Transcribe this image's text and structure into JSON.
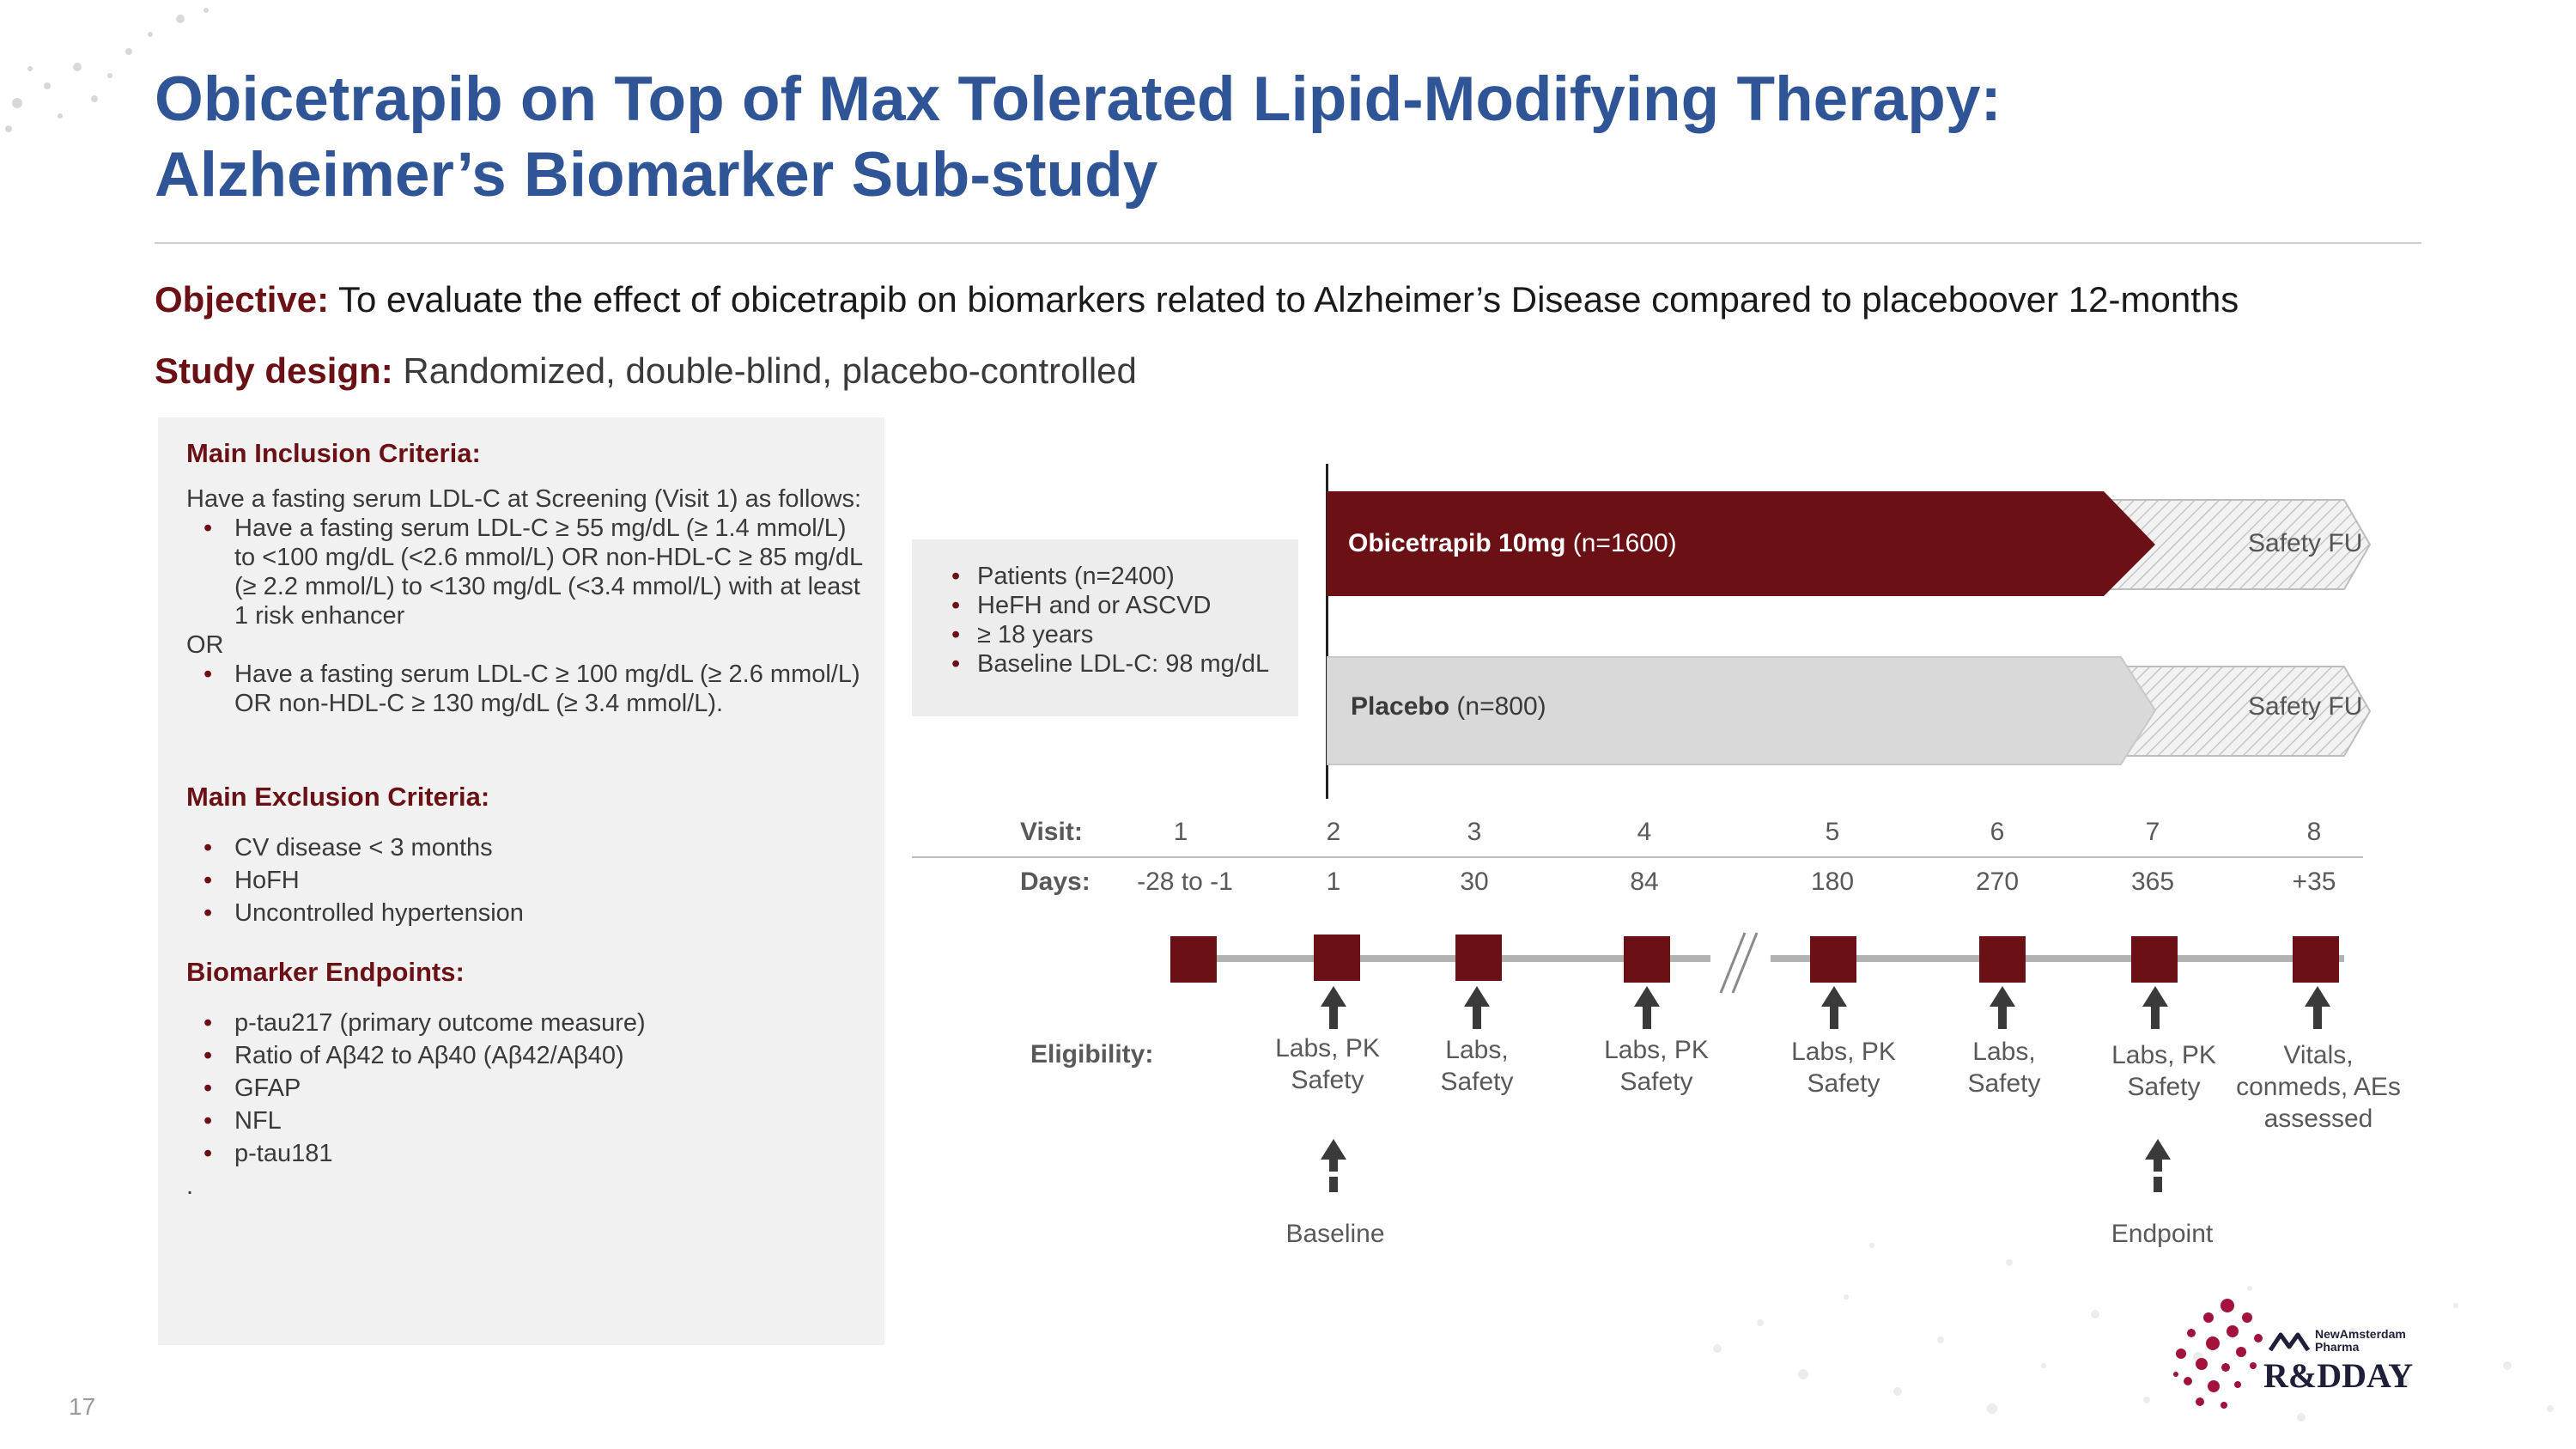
{
  "title": {
    "line1": "Obicetrapib on Top of Max Tolerated Lipid-Modifying Therapy:",
    "line2": "Alzheimer’s Biomarker Sub-study"
  },
  "objective": {
    "label": "Objective:",
    "text": " To evaluate the effect of obicetrapib on biomarkers related to Alzheimer’s Disease compared to placeboover 12-months"
  },
  "study_design": {
    "label": "Study design:",
    "text": " Randomized, double-blind, placebo-controlled"
  },
  "inclusion": {
    "heading": "Main Inclusion Criteria:",
    "intro": "Have a fasting serum LDL-C at Screening (Visit 1) as follows:",
    "item1": "Have a fasting serum LDL-C ≥ 55 mg/dL (≥ 1.4 mmol/L) to <100 mg/dL (<2.6 mmol/L) OR non-HDL-C ≥ 85 mg/dL (≥ 2.2 mmol/L) to <130 mg/dL (<3.4 mmol/L) with at least 1 risk enhancer",
    "or": "OR",
    "item2": "Have a fasting serum LDL-C ≥ 100 mg/dL (≥ 2.6 mmol/L) OR non-HDL-C ≥ 130 mg/dL (≥ 3.4 mmol/L)."
  },
  "exclusion": {
    "heading": "Main Exclusion Criteria:",
    "items": [
      "CV disease < 3 months",
      "HoFH",
      "Uncontrolled hypertension"
    ]
  },
  "endpoints": {
    "heading": "Biomarker Endpoints:",
    "items": [
      "p-tau217 (primary outcome measure)",
      "Ratio of Aβ42 to Aβ40 (Aβ42/Aβ40)",
      "GFAP",
      "NFL",
      "p-tau181"
    ],
    "trailing": "."
  },
  "patients": {
    "items": [
      "Patients (n=2400)",
      "HeFH and or ASCVD",
      "≥ 18 years",
      "Baseline LDL-C:  98 mg/dL"
    ]
  },
  "arms": {
    "treatment": {
      "name": "Obicetrapib 10mg",
      "n": " (n=1600)",
      "followup": "Safety FU"
    },
    "placebo": {
      "name": "Placebo",
      "n": " (n=800)",
      "followup": "Safety FU"
    }
  },
  "schedule": {
    "visit_label": "Visit:",
    "days_label": "Days:",
    "eligibility_label": "Eligibility:",
    "visits": [
      "1",
      "2",
      "3",
      "4",
      "5",
      "6",
      "7",
      "8"
    ],
    "days": [
      "-28 to -1",
      "1",
      "30",
      "84",
      "180",
      "270",
      "365",
      "+35"
    ],
    "eligibility": [
      [
        "Labs, PK",
        "Safety"
      ],
      [
        "Labs,",
        "Safety"
      ],
      [
        "Labs, PK",
        "Safety"
      ],
      [
        "Labs, PK",
        "Safety"
      ],
      [
        "Labs,",
        "Safety"
      ],
      [
        "Labs, PK",
        "Safety"
      ],
      [
        "Vitals,",
        "conmeds, AEs",
        "assessed"
      ]
    ],
    "baseline": "Baseline",
    "endpoint": "Endpoint"
  },
  "logo": {
    "company_line1": "NewAmsterdam",
    "company_line2": "Pharma",
    "event": "R&DDAY"
  },
  "page_number": "17",
  "colors": {
    "title": "#2f5597",
    "accent": "#6b1014",
    "panel": "#f1f1f1"
  }
}
